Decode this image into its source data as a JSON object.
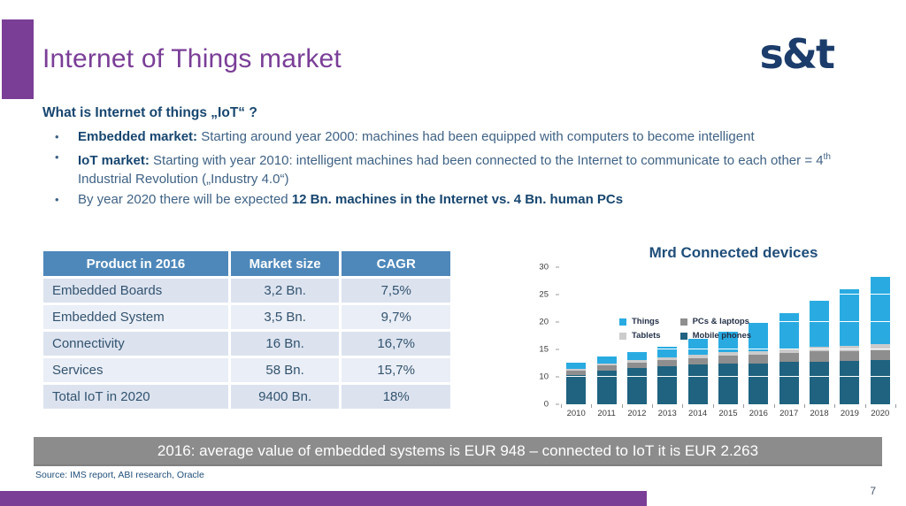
{
  "slide": {
    "title": "Internet of Things market",
    "logo": "s&t",
    "banner": "2016: average value of embedded systems is EUR 948 – connected to IoT it is EUR 2.263",
    "source": "Source: IMS report, ABI research, Oracle",
    "page_number": "7",
    "accent_color": "#7a3e97",
    "heading_color": "#17466f",
    "banner_color": "#8c8c8c"
  },
  "intro": {
    "heading": "What is Internet of things „IoT“ ?",
    "bullets": [
      {
        "parts": [
          {
            "t": "Embedded market:",
            "b": true
          },
          {
            "t": " Starting around year 2000: machines had been equipped with computers to become intelligent"
          }
        ]
      },
      {
        "parts": [
          {
            "t": "IoT market:",
            "b": true
          },
          {
            "t": " Starting with year 2010: intelligent machines had been connected to the Internet to communicate to each other = 4"
          },
          {
            "t": "th",
            "sup": true
          },
          {
            "t": " Industrial Revolution („Industry 4.0“)"
          }
        ]
      },
      {
        "parts": [
          {
            "t": "By year 2020 there will be expected "
          },
          {
            "t": "12 Bn. machines in the Internet vs. 4 Bn. human PCs",
            "b": true
          }
        ]
      }
    ]
  },
  "table": {
    "headers": [
      "Product in 2016",
      "Market size",
      "CAGR"
    ],
    "rows": [
      [
        "Embedded Boards",
        "3,2 Bn.",
        "7,5%"
      ],
      [
        "Embedded System",
        "3,5 Bn.",
        "9,7%"
      ],
      [
        "Connectivity",
        "16 Bn.",
        "16,7%"
      ],
      [
        "Services",
        "58 Bn.",
        "15,7%"
      ],
      [
        "Total IoT in 2020",
        "9400 Bn.",
        "18%"
      ]
    ],
    "header_bg": "#4e88ba",
    "row_colors": [
      "#dce3ef",
      "#eaeef6"
    ]
  },
  "chart_data": {
    "type": "bar",
    "stacked": true,
    "title": "Mrd Connected devices",
    "xlabel": "",
    "ylabel": "",
    "categories": [
      "2010",
      "2011",
      "2012",
      "2013",
      "2014",
      "2015",
      "2016",
      "2017",
      "2018",
      "2019",
      "2020"
    ],
    "series": [
      {
        "name": "Mobile phones",
        "color": "#1f6380",
        "values": [
          10.3,
          11.2,
          11.6,
          11.9,
          12.2,
          12.4,
          12.5,
          12.7,
          12.8,
          12.9,
          13.0
        ]
      },
      {
        "name": "PCs & laptops",
        "color": "#8e8e8e",
        "values": [
          0.8,
          0.9,
          1.0,
          1.2,
          1.2,
          1.4,
          1.5,
          1.7,
          1.8,
          1.8,
          1.9
        ]
      },
      {
        "name": "Tablets",
        "color": "#cccccc",
        "values": [
          0.4,
          0.4,
          0.4,
          0.5,
          0.6,
          0.7,
          0.7,
          0.8,
          0.9,
          1.0,
          1.0
        ]
      },
      {
        "name": "Things",
        "color": "#29abe2",
        "values": [
          1.1,
          1.2,
          1.5,
          1.9,
          3.0,
          3.7,
          5.2,
          6.4,
          8.4,
          10.3,
          12.3
        ]
      }
    ],
    "totals": [
      12.6,
      13.7,
      14.5,
      15.5,
      17.0,
      18.2,
      19.9,
      21.6,
      23.9,
      26.0,
      28.2
    ],
    "legend": [
      {
        "label": "Things",
        "color": "#29abe2"
      },
      {
        "label": "PCs & laptops",
        "color": "#8e8e8e"
      },
      {
        "label": "Tablets",
        "color": "#cccccc"
      },
      {
        "label": "Mobile phones",
        "color": "#1f6380"
      }
    ],
    "legend_position": "upper-left-inside",
    "grid": "white lines over bars at labeled ticks",
    "y_ticks": [
      0,
      10,
      15,
      20,
      25,
      30
    ],
    "y_axis_note": "labeled ticks are evenly spaced (0→10 spans one tick interval, then 5 per interval)"
  }
}
